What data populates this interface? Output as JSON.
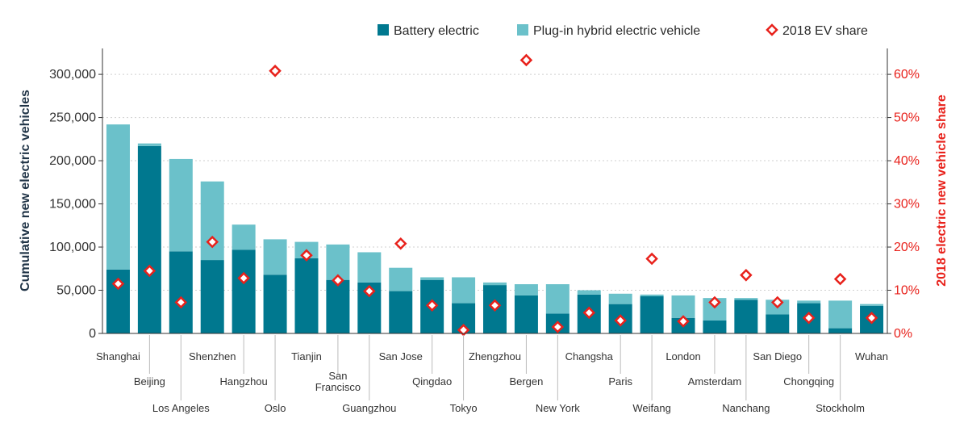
{
  "chart_data": {
    "type": "bar",
    "stacked": true,
    "categories": [
      "Shanghai",
      "Beijing",
      "Los Angeles",
      "Shenzhen",
      "Hangzhou",
      "Oslo",
      "Tianjin",
      "San Francisco",
      "Guangzhou",
      "San Jose",
      "Qingdao",
      "Tokyo",
      "Zhengzhou",
      "Bergen",
      "New York",
      "Changsha",
      "Paris",
      "Weifang",
      "London",
      "Amsterdam",
      "Nanchang",
      "San Diego",
      "Chongqing",
      "Stockholm",
      "Wuhan"
    ],
    "category_lines": [
      [
        "Shanghai"
      ],
      [
        "Beijing"
      ],
      [
        "Los Angeles"
      ],
      [
        "Shenzhen"
      ],
      [
        "Hangzhou"
      ],
      [
        "Oslo"
      ],
      [
        "Tianjin"
      ],
      [
        "San",
        "Francisco"
      ],
      [
        "Guangzhou"
      ],
      [
        "San Jose"
      ],
      [
        "Qingdao"
      ],
      [
        "Tokyo"
      ],
      [
        "Zhengzhou"
      ],
      [
        "Bergen"
      ],
      [
        "New York"
      ],
      [
        "Changsha"
      ],
      [
        "Paris"
      ],
      [
        "Weifang"
      ],
      [
        "London"
      ],
      [
        "Amsterdam"
      ],
      [
        "Nanchang"
      ],
      [
        "San Diego"
      ],
      [
        "Chongqing"
      ],
      [
        "Stockholm"
      ],
      [
        "Wuhan"
      ]
    ],
    "category_label_row": [
      0,
      1,
      2,
      0,
      1,
      2,
      0,
      1,
      2,
      0,
      1,
      2,
      0,
      1,
      2,
      0,
      1,
      2,
      0,
      1,
      2,
      0,
      1,
      2,
      0
    ],
    "series": [
      {
        "name": "Battery electric",
        "type": "bar",
        "axis": "left",
        "color": "#00788f",
        "values": [
          74000,
          217000,
          95000,
          85000,
          97000,
          68000,
          87000,
          62000,
          59000,
          49000,
          62000,
          35000,
          56000,
          44000,
          23000,
          45000,
          34000,
          43000,
          18000,
          15000,
          39000,
          22000,
          35000,
          6000,
          32000
        ]
      },
      {
        "name": "Plug-in hybrid electric vehicle",
        "type": "bar",
        "axis": "left",
        "color": "#6bc1ca",
        "values": [
          168000,
          3000,
          107000,
          91000,
          29000,
          41000,
          19000,
          41000,
          35000,
          27000,
          3000,
          30000,
          3000,
          13000,
          34000,
          5000,
          12000,
          2000,
          26000,
          26000,
          2000,
          17000,
          3000,
          32000,
          2000
        ]
      },
      {
        "name": "2018 EV share",
        "type": "scatter",
        "axis": "right",
        "color": "#e8211b",
        "values": [
          11.5,
          14.5,
          7.2,
          21.2,
          12.8,
          60.8,
          18.1,
          12.3,
          9.8,
          20.8,
          6.5,
          0.8,
          6.5,
          63.3,
          1.5,
          4.8,
          3.0,
          17.3,
          2.8,
          7.2,
          13.5,
          7.2,
          3.6,
          12.6,
          3.6
        ]
      }
    ],
    "legend": [
      "Battery electric",
      "Plug-in hybrid electric vehicle",
      "2018 EV share"
    ],
    "legend_position": "top-right",
    "ylabel": "Cumulative new electric vehicles",
    "y2label": "2018 electric new vehicle share",
    "ylim": [
      0,
      330000
    ],
    "y2lim": [
      0,
      66
    ],
    "yticks": [
      0,
      50000,
      100000,
      150000,
      200000,
      250000,
      300000
    ],
    "ytick_labels": [
      "0",
      "50,000",
      "100,000",
      "150,000",
      "200,000",
      "250,000",
      "300,000"
    ],
    "y2ticks": [
      0,
      10,
      20,
      30,
      40,
      50,
      60
    ],
    "y2tick_labels": [
      "0%",
      "10%",
      "20%",
      "30%",
      "40%",
      "50%",
      "60%"
    ],
    "grid": true
  }
}
